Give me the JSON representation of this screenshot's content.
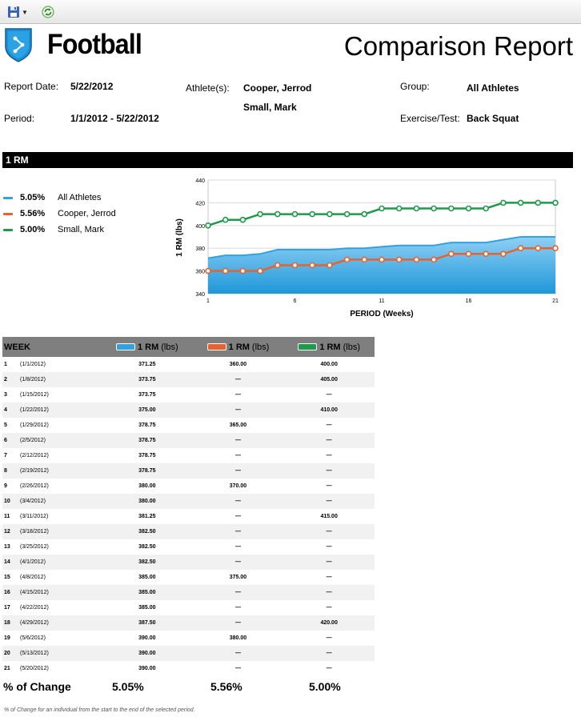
{
  "toolbar": {
    "save_icon": "save-icon",
    "refresh_icon": "refresh-icon"
  },
  "header": {
    "app_name": "Football",
    "report_title": "Comparison Report"
  },
  "meta": {
    "report_date_label": "Report Date:",
    "report_date": "5/22/2012",
    "athletes_label": "Athlete(s):",
    "athletes": [
      "Cooper, Jerrod",
      "Small, Mark"
    ],
    "group_label": "Group:",
    "group": "All Athletes",
    "period_label": "Period:",
    "period": "1/1/2012 - 5/22/2012",
    "exercise_label": "Exercise/Test:",
    "exercise": "Back Squat"
  },
  "section_title": "1 RM",
  "colors": {
    "blue": "#33a1dd",
    "orange": "#e8622c",
    "green": "#1d9a4a"
  },
  "legend": [
    {
      "pct": "5.05%",
      "name": "All Athletes",
      "color": "#33a1dd"
    },
    {
      "pct": "5.56%",
      "name": "Cooper, Jerrod",
      "color": "#e8622c"
    },
    {
      "pct": "5.00%",
      "name": "Small, Mark",
      "color": "#1d9a4a"
    }
  ],
  "chart_data": {
    "type": "line",
    "xlabel": "PERIOD (Weeks)",
    "ylabel": "1 RM (lbs)",
    "ylim": [
      340,
      440
    ],
    "yticks": [
      340,
      360,
      380,
      400,
      420,
      440
    ],
    "xticks": [
      1,
      6,
      11,
      16,
      21
    ],
    "x": [
      1,
      2,
      3,
      4,
      5,
      6,
      7,
      8,
      9,
      10,
      11,
      12,
      13,
      14,
      15,
      16,
      17,
      18,
      19,
      20,
      21
    ],
    "grid": "horizontal",
    "series": [
      {
        "name": "All Athletes",
        "style": "area",
        "color": "#33a1dd",
        "values": [
          371.25,
          373.75,
          373.75,
          375.0,
          378.75,
          378.75,
          378.75,
          378.75,
          380.0,
          380.0,
          381.25,
          382.5,
          382.5,
          382.5,
          385.0,
          385.0,
          385.0,
          387.5,
          390.0,
          390.0,
          390.0
        ]
      },
      {
        "name": "Cooper, Jerrod",
        "style": "step-markers",
        "color": "#e8622c",
        "values": [
          360,
          360,
          360,
          360,
          365,
          365,
          365,
          365,
          370,
          370,
          370,
          370,
          370,
          370,
          375,
          375,
          375,
          375,
          380,
          380,
          380
        ]
      },
      {
        "name": "Small, Mark",
        "style": "step-markers",
        "color": "#1d9a4a",
        "values": [
          400,
          405,
          405,
          410,
          410,
          410,
          410,
          410,
          410,
          410,
          415,
          415,
          415,
          415,
          415,
          415,
          415,
          420,
          420,
          420,
          420
        ]
      }
    ]
  },
  "table": {
    "week_header": "WEEK",
    "col_label": "1 RM",
    "col_unit": "(lbs)",
    "rows": [
      {
        "week": "1",
        "date": "(1/1/2012)",
        "all": "371.25",
        "cooper": "360.00",
        "small": "400.00"
      },
      {
        "week": "2",
        "date": "(1/8/2012)",
        "all": "373.75",
        "cooper": "—",
        "small": "405.00"
      },
      {
        "week": "3",
        "date": "(1/15/2012)",
        "all": "373.75",
        "cooper": "—",
        "small": "—"
      },
      {
        "week": "4",
        "date": "(1/22/2012)",
        "all": "375.00",
        "cooper": "—",
        "small": "410.00"
      },
      {
        "week": "5",
        "date": "(1/29/2012)",
        "all": "378.75",
        "cooper": "365.00",
        "small": "—"
      },
      {
        "week": "6",
        "date": "(2/5/2012)",
        "all": "378.75",
        "cooper": "—",
        "small": "—"
      },
      {
        "week": "7",
        "date": "(2/12/2012)",
        "all": "378.75",
        "cooper": "—",
        "small": "—"
      },
      {
        "week": "8",
        "date": "(2/19/2012)",
        "all": "378.75",
        "cooper": "—",
        "small": "—"
      },
      {
        "week": "9",
        "date": "(2/26/2012)",
        "all": "380.00",
        "cooper": "370.00",
        "small": "—"
      },
      {
        "week": "10",
        "date": "(3/4/2012)",
        "all": "380.00",
        "cooper": "—",
        "small": "—"
      },
      {
        "week": "11",
        "date": "(3/11/2012)",
        "all": "381.25",
        "cooper": "—",
        "small": "415.00"
      },
      {
        "week": "12",
        "date": "(3/18/2012)",
        "all": "382.50",
        "cooper": "—",
        "small": "—"
      },
      {
        "week": "13",
        "date": "(3/25/2012)",
        "all": "382.50",
        "cooper": "—",
        "small": "—"
      },
      {
        "week": "14",
        "date": "(4/1/2012)",
        "all": "382.50",
        "cooper": "—",
        "small": "—"
      },
      {
        "week": "15",
        "date": "(4/8/2012)",
        "all": "385.00",
        "cooper": "375.00",
        "small": "—"
      },
      {
        "week": "16",
        "date": "(4/15/2012)",
        "all": "385.00",
        "cooper": "—",
        "small": "—"
      },
      {
        "week": "17",
        "date": "(4/22/2012)",
        "all": "385.00",
        "cooper": "—",
        "small": "—"
      },
      {
        "week": "18",
        "date": "(4/29/2012)",
        "all": "387.50",
        "cooper": "—",
        "small": "420.00"
      },
      {
        "week": "19",
        "date": "(5/6/2012)",
        "all": "390.00",
        "cooper": "380.00",
        "small": "—"
      },
      {
        "week": "20",
        "date": "(5/13/2012)",
        "all": "390.00",
        "cooper": "—",
        "small": "—"
      },
      {
        "week": "21",
        "date": "(5/20/2012)",
        "all": "390.00",
        "cooper": "—",
        "small": "—"
      }
    ]
  },
  "summary": {
    "label": "% of Change",
    "all": "5.05%",
    "cooper": "5.56%",
    "small": "5.00%"
  },
  "footnote": "% of Change for an individual from the start to the end of the selected period."
}
